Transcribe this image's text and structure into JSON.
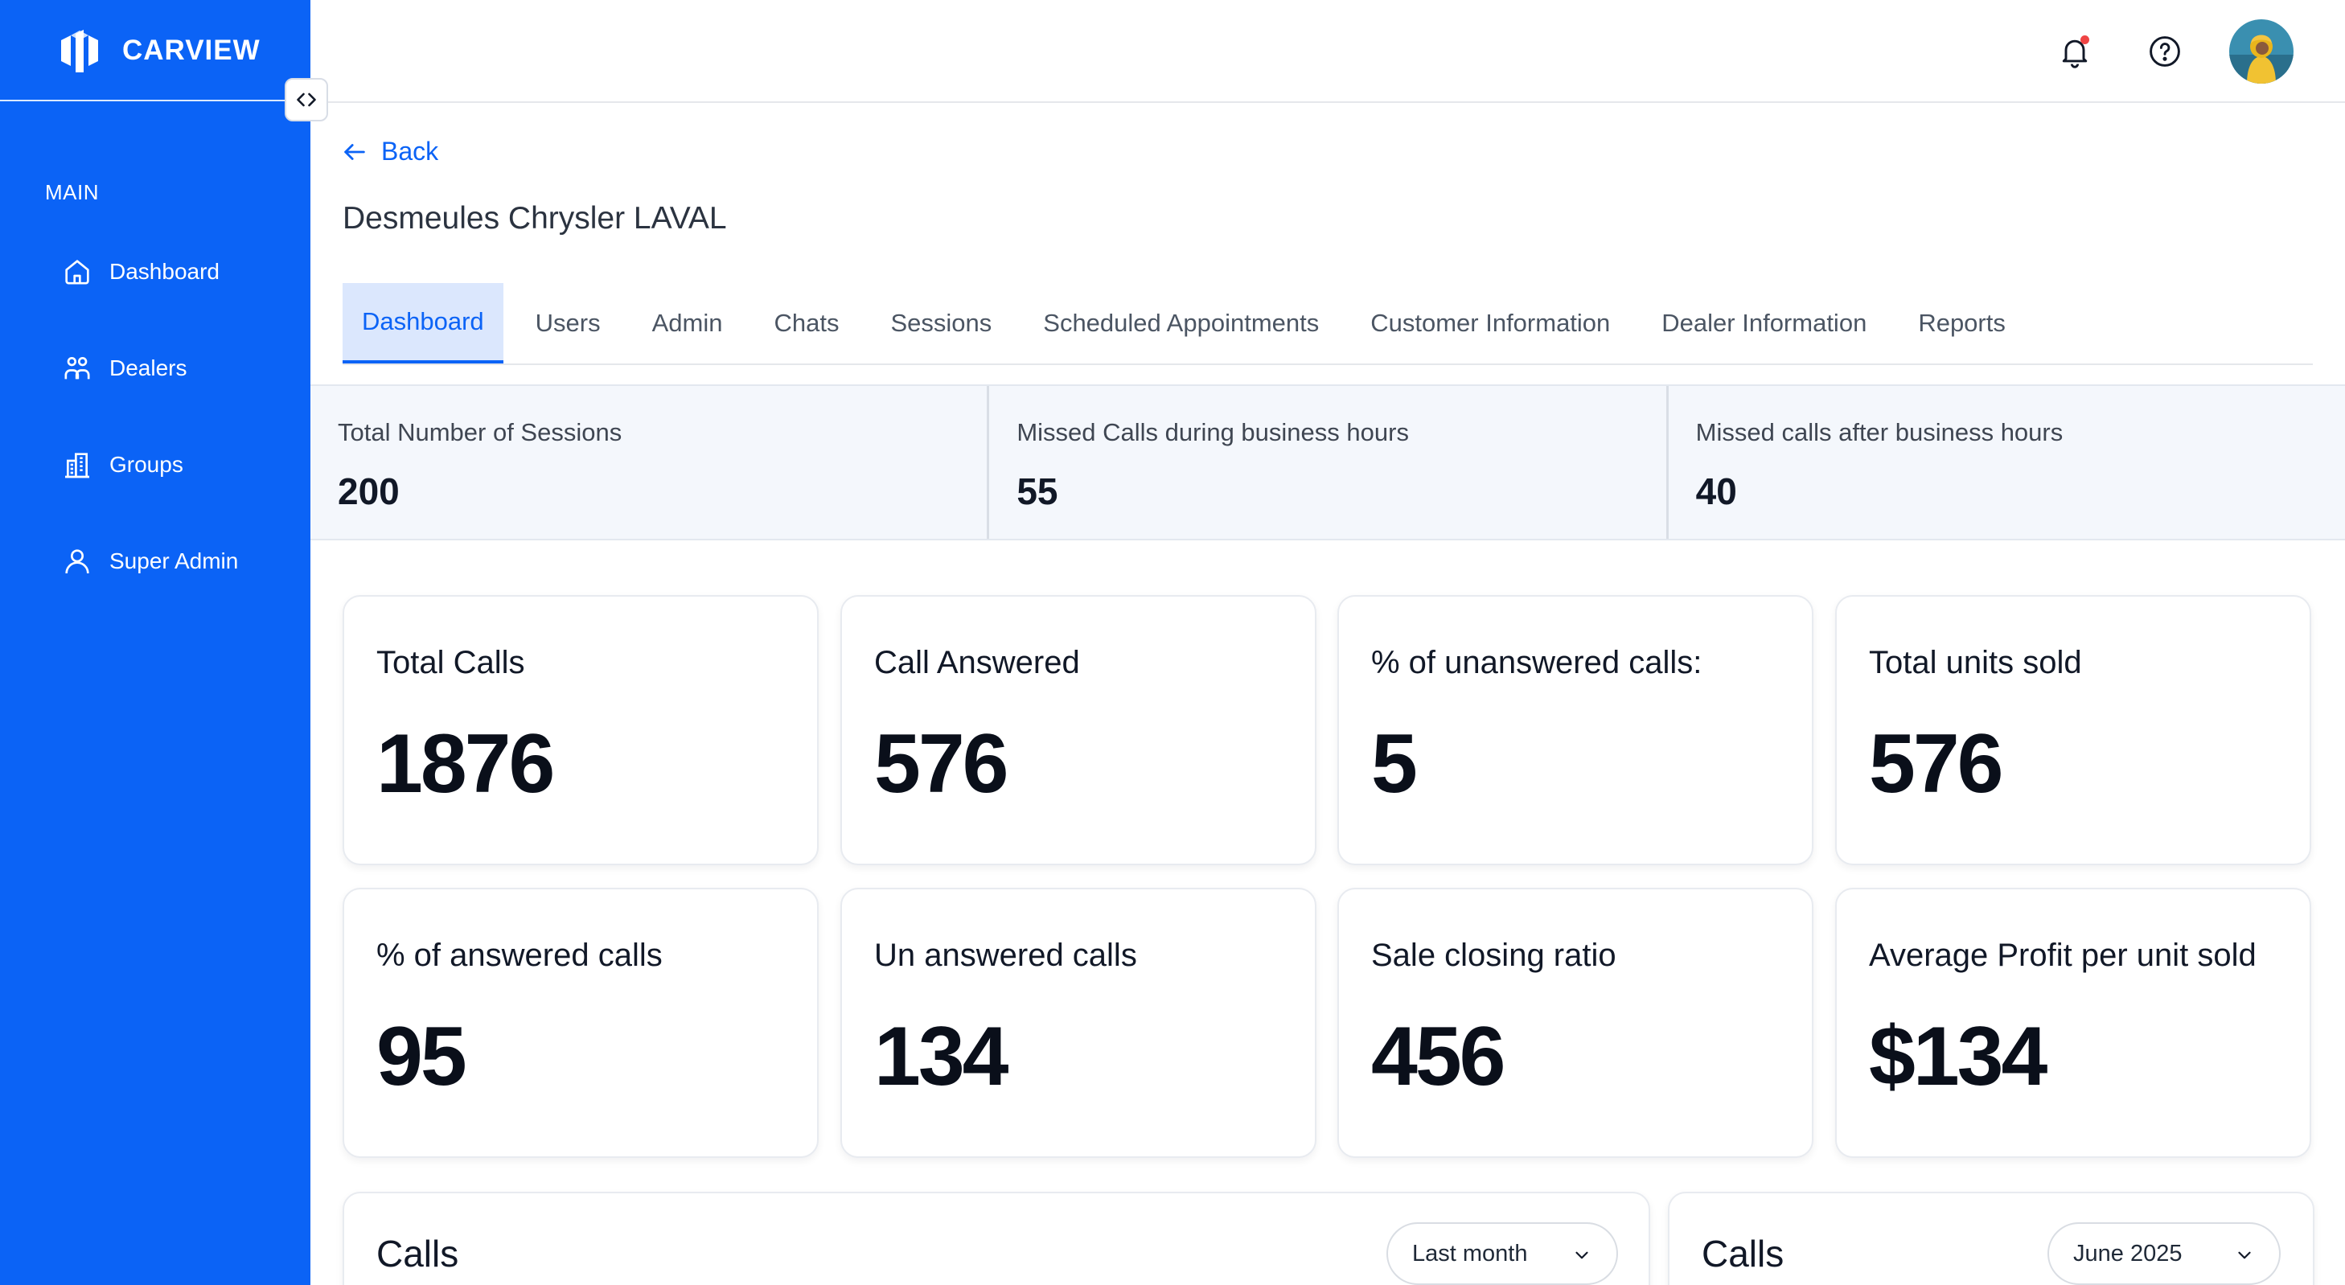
{
  "brand": {
    "name": "CARVIEW"
  },
  "sidebar": {
    "section": "MAIN",
    "items": [
      {
        "label": "Dashboard",
        "icon": "home-icon"
      },
      {
        "label": "Dealers",
        "icon": "users-icon"
      },
      {
        "label": "Groups",
        "icon": "building-icon"
      },
      {
        "label": "Super Admin",
        "icon": "user-icon"
      }
    ]
  },
  "topbar": {
    "icons": [
      "bell-icon",
      "help-icon"
    ],
    "notification_dot_color": "#ef4444"
  },
  "back": {
    "label": "Back"
  },
  "page": {
    "title": "Desmeules Chrysler LAVAL"
  },
  "tabs": [
    {
      "label": "Dashboard",
      "active": true
    },
    {
      "label": "Users"
    },
    {
      "label": "Admin"
    },
    {
      "label": "Chats"
    },
    {
      "label": "Sessions"
    },
    {
      "label": "Scheduled Appointments"
    },
    {
      "label": "Customer Information"
    },
    {
      "label": "Dealer Information"
    },
    {
      "label": "Reports"
    }
  ],
  "summary": [
    {
      "label": "Total Number of Sessions",
      "value": "200"
    },
    {
      "label": "Missed Calls during business hours",
      "value": "55"
    },
    {
      "label": "Missed calls after business hours",
      "value": "40"
    }
  ],
  "stats": [
    {
      "label": "Total Calls",
      "value": "1876"
    },
    {
      "label": "Call Answered",
      "value": "576"
    },
    {
      "label": "% of unanswered calls:",
      "value": "5"
    },
    {
      "label": "Total units sold",
      "value": "576"
    },
    {
      "label": "% of answered calls",
      "value": "95"
    },
    {
      "label": "Un answered calls",
      "value": "134"
    },
    {
      "label": "Sale closing ratio",
      "value": "456"
    },
    {
      "label": "Average Profit per unit sold",
      "value": "$134"
    }
  ],
  "charts": [
    {
      "title": "Calls",
      "select": "Last month"
    },
    {
      "title": "Calls",
      "select": "June 2025"
    }
  ],
  "colors": {
    "primary": "#0b63f6",
    "active_tab_bg": "#dbe7fd",
    "summary_bg": "#f4f7fc"
  }
}
